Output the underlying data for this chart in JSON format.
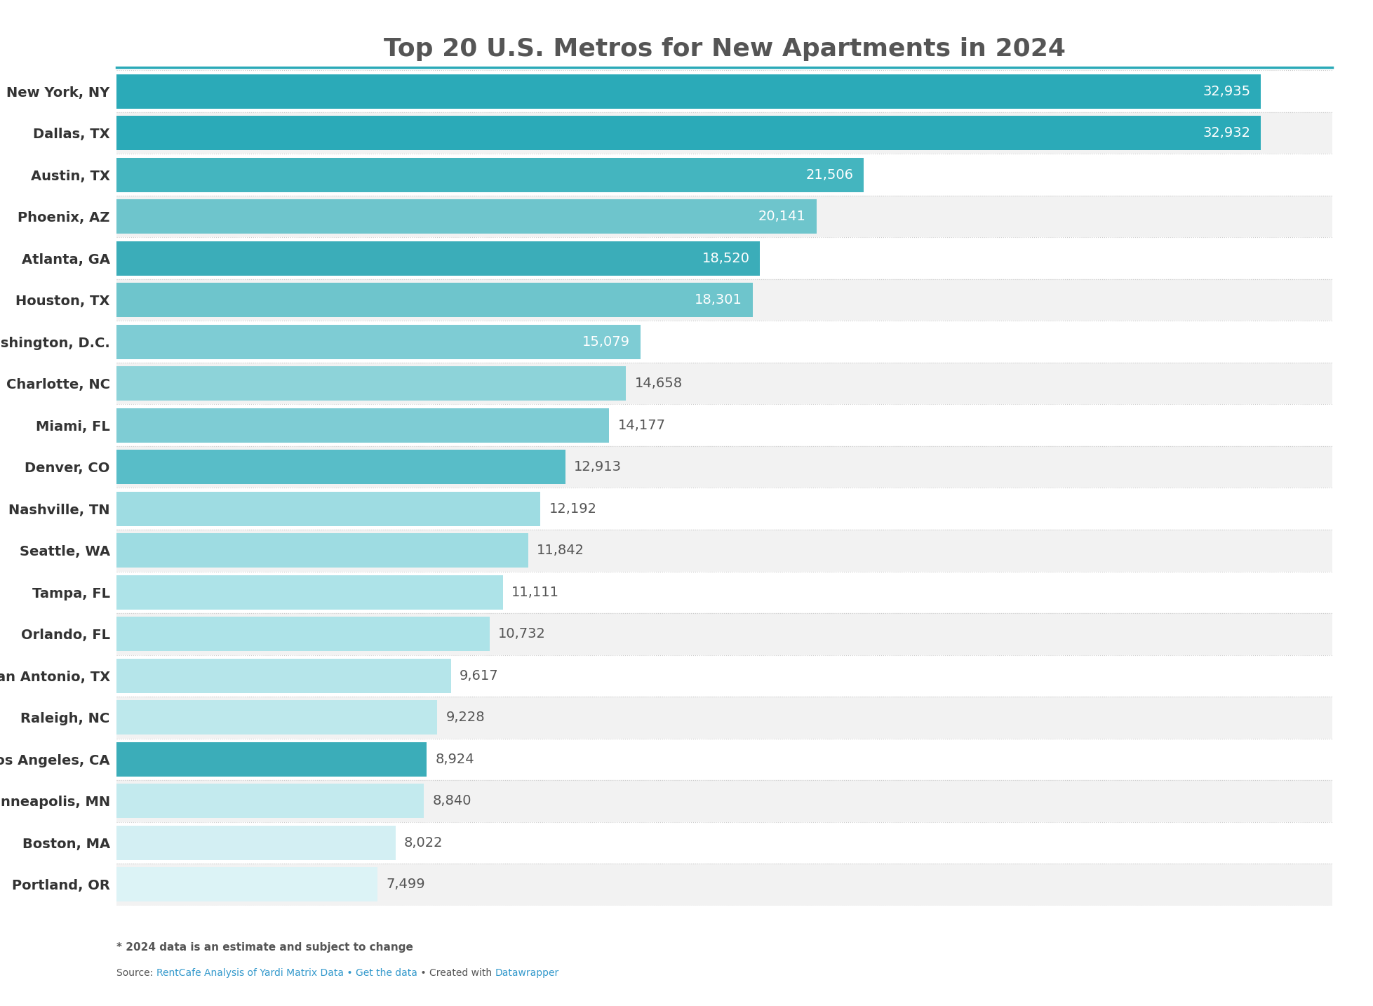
{
  "title": "Top 20 U.S. Metros for New Apartments in 2024",
  "categories": [
    "New York, NY",
    "Dallas, TX",
    "Austin, TX",
    "Phoenix, AZ",
    "Atlanta, GA",
    "Houston, TX",
    "Washington, D.C.",
    "Charlotte, NC",
    "Miami, FL",
    "Denver, CO",
    "Nashville, TN",
    "Seattle, WA",
    "Tampa, FL",
    "Orlando, FL",
    "San Antonio, TX",
    "Raleigh, NC",
    "Los Angeles, CA",
    "Minneapolis, MN",
    "Boston, MA",
    "Portland, OR"
  ],
  "values": [
    32935,
    32932,
    21506,
    20141,
    18520,
    18301,
    15079,
    14658,
    14177,
    12913,
    12192,
    11842,
    11111,
    10732,
    9617,
    9228,
    8924,
    8840,
    8022,
    7499
  ],
  "bar_colors": [
    "#2BAAB8",
    "#2BAAB8",
    "#44B5BF",
    "#6EC5CC",
    "#3BADB9",
    "#6EC5CC",
    "#7ECCD4",
    "#8DD3D9",
    "#7ECCD4",
    "#58BDC8",
    "#9EDCE2",
    "#9EDCE2",
    "#ADE3E8",
    "#ADE3E8",
    "#B5E5EA",
    "#BDE8EC",
    "#3BADB9",
    "#C3EAEE",
    "#D3EFF3",
    "#DCF3F6"
  ],
  "value_label_inside_color": "#ffffff",
  "value_label_outside_color": "#555555",
  "value_label_threshold": 15000,
  "title_color": "#555555",
  "background_color": "#ffffff",
  "row_even_color": "#f2f2f2",
  "row_odd_color": "#ffffff",
  "separator_color": "#cccccc",
  "teal_line_color": "#2BAAB8",
  "footnote_bold": "* 2024 data is an estimate and subject to change",
  "source_plain1": "Source: ",
  "source_link1": "RentCafe Analysis of Yardi Matrix Data",
  "source_plain2": " • Get the data",
  "source_plain3": " • Created with ",
  "source_link2": "Datawrapper",
  "link_color": "#3399cc",
  "text_color": "#555555",
  "xlim": [
    0,
    35000
  ],
  "bar_height": 0.82,
  "label_fontsize": 14,
  "ytick_fontsize": 14,
  "title_fontsize": 26,
  "footnote_fontsize": 11,
  "source_fontsize": 10
}
